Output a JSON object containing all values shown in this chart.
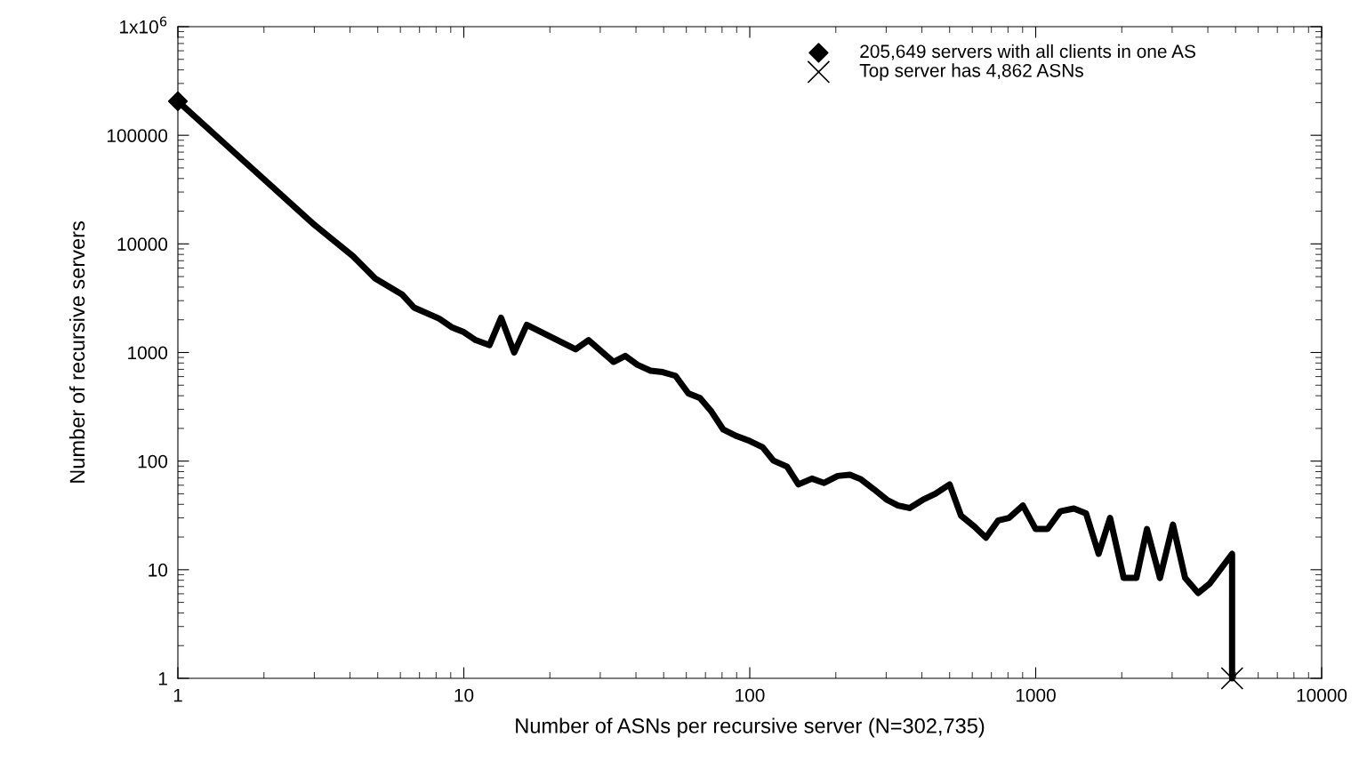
{
  "chart_data": {
    "type": "line",
    "xlabel": "Number of ASNs per recursive server (N=302,735)",
    "ylabel": "Number of recursive servers",
    "log": "xy",
    "xlim": [
      1,
      10000
    ],
    "ylim": [
      1,
      1000000
    ],
    "xticks": [
      1,
      10,
      100,
      1000,
      10000
    ],
    "yticks": [
      1,
      10,
      100,
      1000,
      10000,
      100000,
      {
        "value": 1000000,
        "label": "1x10$^{6}$"
      }
    ],
    "grid": false,
    "legend": "top right",
    "series": [
      {
        "color": "#000000",
        "line_style": "solid",
        "marker": "none",
        "x": [
          1,
          3,
          4.1,
          4.9,
          6.1,
          6.7,
          8.2,
          9.1,
          10,
          11,
          12.3,
          13.5,
          15,
          16.6,
          24.6,
          27.3,
          33.4,
          36.7,
          40.5,
          45,
          49.6,
          55,
          61,
          67,
          73.5,
          80.8,
          90,
          100,
          111,
          121,
          135,
          148,
          165,
          182,
          203,
          224,
          245,
          272,
          302,
          330,
          362,
          403,
          446,
          500,
          548,
          610,
          670,
          740,
          806,
          902,
          1000,
          1100,
          1220,
          1360,
          1500,
          1660,
          1820,
          2030,
          2250,
          2450,
          2720,
          3020,
          3330,
          3700,
          4050,
          4862,
          4862
        ],
        "values": [
          205649,
          15000,
          7700,
          4800,
          3400,
          2590,
          2050,
          1700,
          1540,
          1300,
          1170,
          2090,
          1000,
          1800,
          1070,
          1300,
          820,
          930,
          770,
          680,
          660,
          610,
          420,
          380,
          285,
          195,
          170,
          153,
          134,
          101,
          89,
          61,
          69,
          63,
          73,
          75,
          68,
          55,
          44,
          39,
          37,
          44,
          50,
          61,
          31.5,
          25,
          19.7,
          28.5,
          30,
          39,
          23.7,
          23.7,
          34.5,
          36.6,
          33,
          14,
          30,
          8.4,
          8.4,
          23.7,
          8.4,
          26,
          8.4,
          6.1,
          7.4,
          14,
          1
        ]
      },
      {
        "type": "scatter",
        "name": "205,649 servers with all clients in one AS",
        "color": "#000000",
        "marker": "diamond",
        "x": [
          1
        ],
        "values": [
          205649
        ]
      },
      {
        "type": "scatter",
        "name": "Top server has 4,862 ASNs",
        "color": "#000000",
        "marker": "cross",
        "x": [
          4862
        ],
        "values": [
          1
        ]
      }
    ]
  }
}
